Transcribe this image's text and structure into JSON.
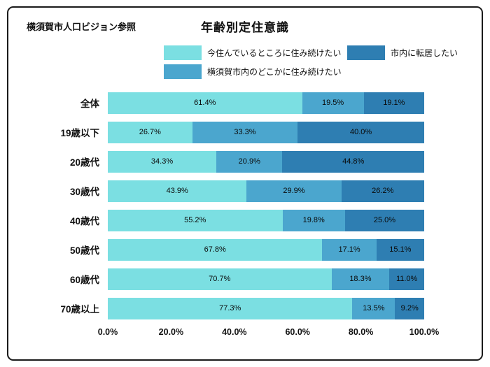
{
  "header": {
    "source_note": "横須賀市人口ビジョン参照",
    "title": "年齢別定住意識"
  },
  "legend": [
    {
      "label": "今住んでいるところに住み続けたい",
      "color": "#7bdfe2"
    },
    {
      "label": "横須賀市内のどこかに住み続けたい",
      "color": "#4ba6ce"
    },
    {
      "label": "市内に転居したい",
      "color": "#2e7eb2"
    }
  ],
  "chart_data": {
    "type": "bar",
    "orientation": "horizontal",
    "stacked": true,
    "title": "年齢別定住意識",
    "categories": [
      "全体",
      "19歳以下",
      "20歳代",
      "30歳代",
      "40歳代",
      "50歳代",
      "60歳代",
      "70歳以上"
    ],
    "series": [
      {
        "name": "今住んでいるところに住み続けたい",
        "color": "#7bdfe2",
        "values": [
          61.4,
          26.7,
          34.3,
          43.9,
          55.2,
          67.8,
          70.7,
          77.3
        ]
      },
      {
        "name": "横須賀市内のどこかに住み続けたい",
        "color": "#4ba6ce",
        "values": [
          19.5,
          33.3,
          20.9,
          29.9,
          19.8,
          17.1,
          18.3,
          13.5
        ]
      },
      {
        "name": "市内に転居したい",
        "color": "#2e7eb2",
        "values": [
          19.1,
          40.0,
          44.8,
          26.2,
          25.0,
          15.1,
          11.0,
          9.2
        ]
      }
    ],
    "x_ticks": [
      "0.0%",
      "20.0%",
      "40.0%",
      "60.0%",
      "80.0%",
      "100.0%"
    ],
    "xlim": [
      0,
      100
    ],
    "value_suffix": "%",
    "legend_position": "top",
    "grid": false
  }
}
